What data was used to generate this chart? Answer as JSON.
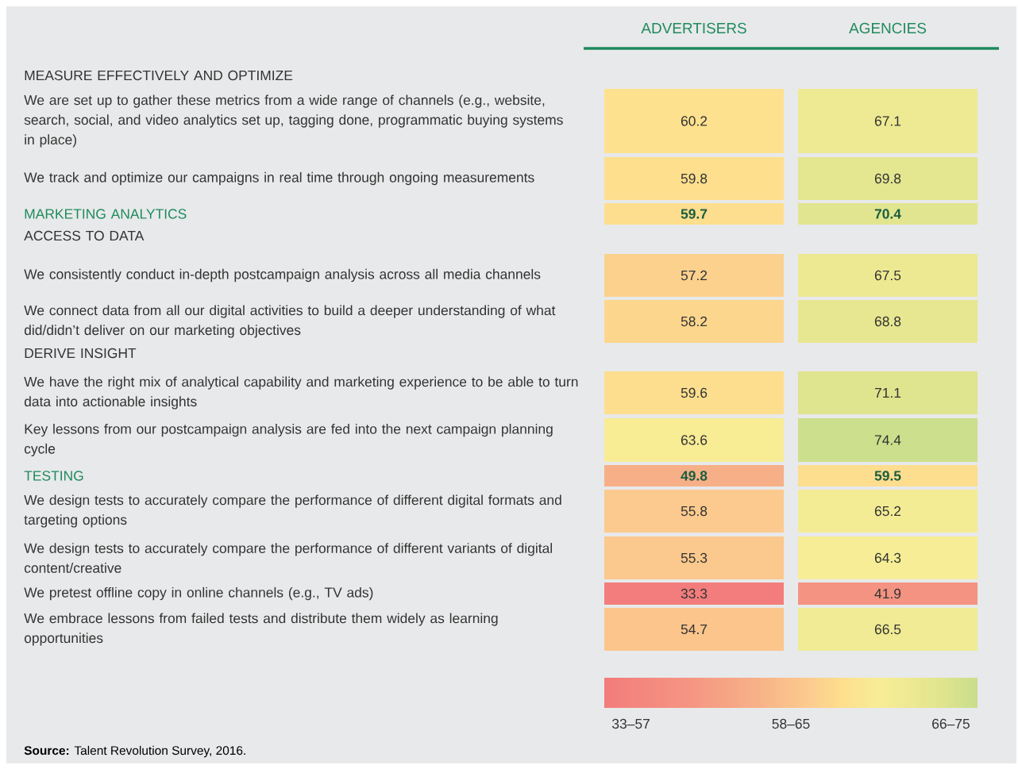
{
  "chart_data": {
    "type": "heatmap",
    "categories": [
      "ADVERTISERS",
      "AGENCIES"
    ],
    "y_categories": [
      "MEASURE EFFECTIVELY AND OPTIMIZE",
      "We are set up to gather these metrics from a wide range of channels (e.g., website, search, social, and video analytics set up, tagging done, programmatic buying systems in place)",
      "We track and optimize our campaigns in real time through ongoing measurements",
      "MARKETING ANALYTICS",
      "ACCESS TO DATA",
      "We consistently conduct in-depth postcampaign analysis across all media channels",
      "We connect data from all our digital activities to build a deeper understanding of what did/didn’t deliver on our marketing objectives",
      "DERIVE INSIGHT",
      "We have the right mix of analytical capability and marketing experience to be able to turn data into actionable insights",
      "Key lessons from our postcampaign analysis are fed into the next campaign planning cycle",
      "TESTING",
      "We design tests to accurately compare the performance of different digital formats and targeting options",
      "We design tests to accurately compare the performance of different variants of digital content/creative",
      "We pretest offline copy in online channels (e.g., TV ads)",
      "We embrace lessons from failed tests and distribute them widely as learning opportunities"
    ],
    "cells": [
      [
        null,
        null
      ],
      [
        60.2,
        67.1
      ],
      [
        59.8,
        69.8
      ],
      [
        59.7,
        70.4
      ],
      [
        null,
        null
      ],
      [
        57.2,
        67.5
      ],
      [
        58.2,
        68.8
      ],
      [
        null,
        null
      ],
      [
        59.6,
        71.1
      ],
      [
        63.6,
        74.4
      ],
      [
        49.8,
        59.5
      ],
      [
        55.8,
        65.2
      ],
      [
        55.3,
        64.3
      ],
      [
        33.3,
        41.9
      ],
      [
        54.7,
        66.5
      ]
    ],
    "clim": [
      33,
      75
    ],
    "cticks": [
      {
        "value": 36,
        "label": "33–57"
      },
      {
        "value": 54,
        "label": "58–65"
      },
      {
        "value": 72,
        "label": "66–75"
      }
    ],
    "data_labels": true,
    "annotations": [
      "**Source:** Talent Revolution Survey, 2016."
    ]
  }
}
